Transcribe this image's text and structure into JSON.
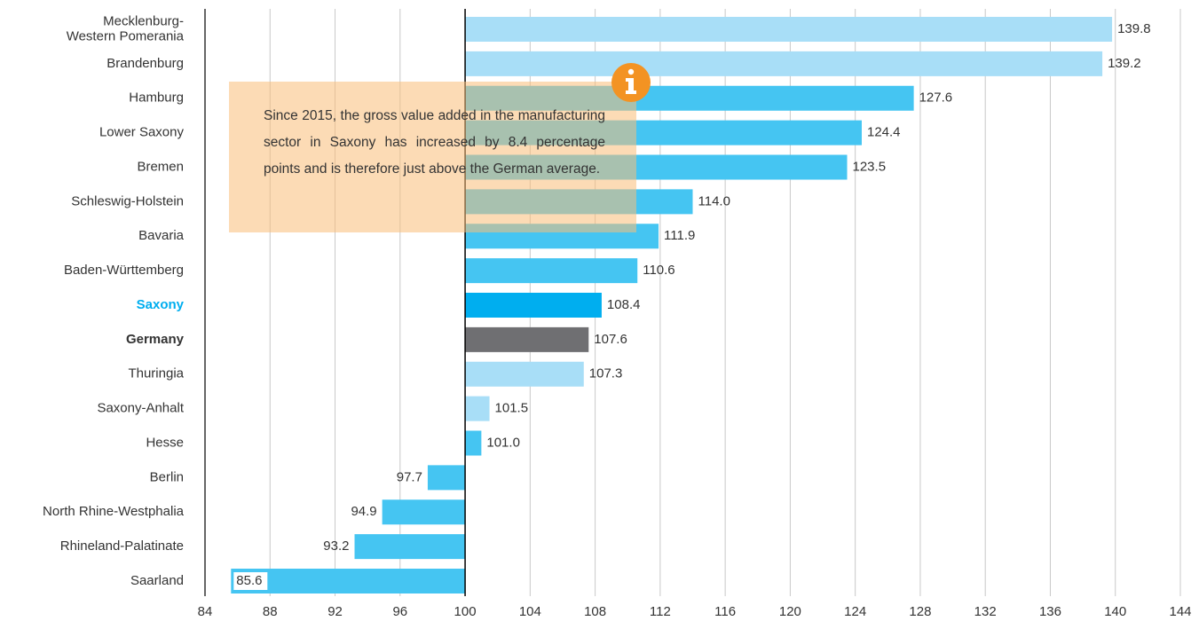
{
  "chart_data": {
    "type": "hbar",
    "categories": [
      "Mecklenburg-\nWestern Pomerania",
      "Brandenburg",
      "Hamburg",
      "Lower Saxony",
      "Bremen",
      "Schleswig-Holstein",
      "Bavaria",
      "Baden-Württemberg",
      "Saxony",
      "Germany",
      "Thuringia",
      "Saxony-Anhalt",
      "Hesse",
      "Berlin",
      "North Rhine-Westphalia",
      "Rhineland-Palatinate",
      "Saarland"
    ],
    "values": [
      139.8,
      139.2,
      127.6,
      124.4,
      123.5,
      114.0,
      111.9,
      110.6,
      108.4,
      107.6,
      107.3,
      101.5,
      101.0,
      97.7,
      94.9,
      93.2,
      85.6
    ],
    "value_labels": [
      "139.8",
      "139.2",
      "127.6",
      "124.4",
      "123.5",
      "114.0",
      "111.9",
      "110.6",
      "108.4",
      "107.6",
      "107.3",
      "101.5",
      "101.0",
      "97.7",
      "94.9",
      "93.2",
      "85.6"
    ],
    "colors": [
      "#a8def7",
      "#a8def7",
      "#45c5f2",
      "#45c5f2",
      "#45c5f2",
      "#45c5f2",
      "#45c5f2",
      "#45c5f2",
      "#00aeef",
      "#6f6f72",
      "#a8def7",
      "#a8def7",
      "#45c5f2",
      "#45c5f2",
      "#45c5f2",
      "#45c5f2",
      "#45c5f2"
    ],
    "highlight_label_indices": [
      8
    ],
    "bold_label_indices": [
      8,
      9
    ],
    "base": 100,
    "xlim": [
      84,
      144
    ],
    "xticks": [
      84,
      88,
      92,
      96,
      100,
      104,
      108,
      112,
      116,
      120,
      124,
      128,
      132,
      136,
      140,
      144
    ],
    "grid": true,
    "annotation": "Since 2015, the gross value added in the manufacturing sector in Saxony has increased by 8.4 percentage points and is therefore just above the German average."
  }
}
